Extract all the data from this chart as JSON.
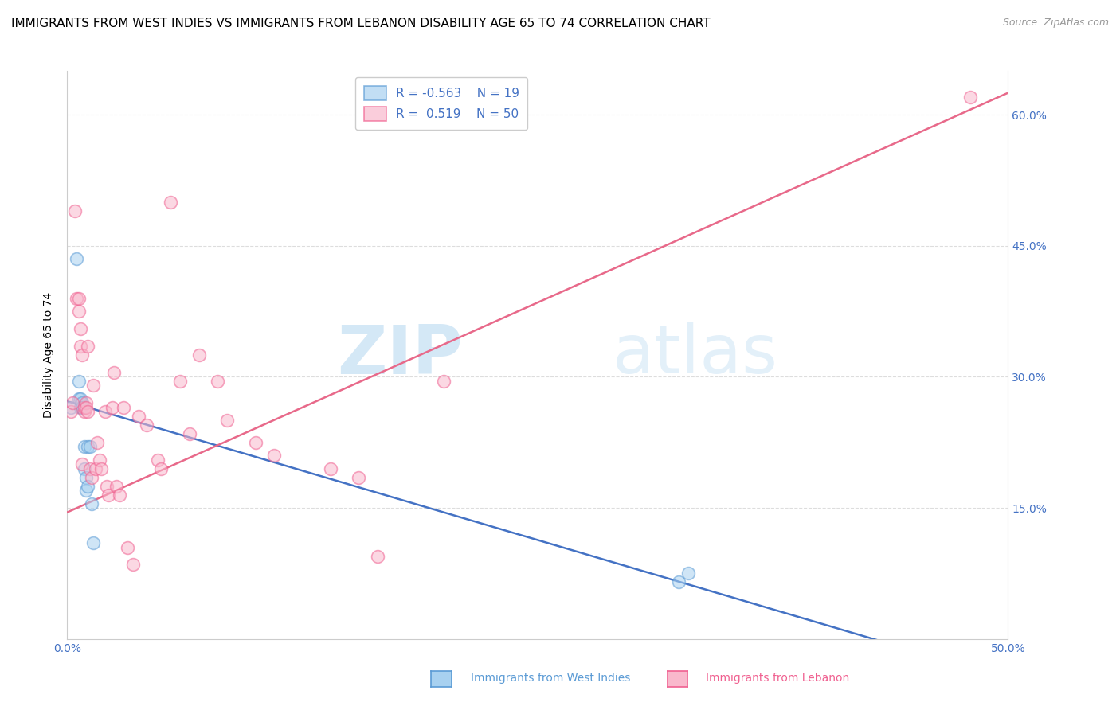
{
  "title": "IMMIGRANTS FROM WEST INDIES VS IMMIGRANTS FROM LEBANON DISABILITY AGE 65 TO 74 CORRELATION CHART",
  "source": "Source: ZipAtlas.com",
  "xlabel_bottom": "Immigrants from West Indies",
  "xlabel_bottom2": "Immigrants from Lebanon",
  "ylabel": "Disability Age 65 to 74",
  "xlim": [
    0.0,
    0.5
  ],
  "ylim": [
    0.0,
    0.65
  ],
  "x_ticks": [
    0.0,
    0.1,
    0.2,
    0.3,
    0.4,
    0.5
  ],
  "x_tick_labels": [
    "0.0%",
    "",
    "",
    "",
    "",
    "50.0%"
  ],
  "y_ticks": [
    0.15,
    0.3,
    0.45,
    0.6
  ],
  "y_tick_labels": [
    "15.0%",
    "30.0%",
    "45.0%",
    "60.0%"
  ],
  "grid_color": "#dddddd",
  "watermark_text": "ZIP",
  "watermark_text2": "atlas",
  "blue_color": "#a8d1f0",
  "pink_color": "#f9b8cc",
  "blue_edge_color": "#5b9bd5",
  "pink_edge_color": "#f06090",
  "blue_line_color": "#4472c4",
  "pink_line_color": "#e8698a",
  "legend_R_blue": "-0.563",
  "legend_N_blue": "19",
  "legend_R_pink": " 0.519",
  "legend_N_pink": "50",
  "blue_scatter_x": [
    0.002,
    0.005,
    0.006,
    0.006,
    0.007,
    0.007,
    0.008,
    0.008,
    0.009,
    0.009,
    0.01,
    0.01,
    0.011,
    0.011,
    0.012,
    0.013,
    0.014,
    0.325,
    0.33
  ],
  "blue_scatter_y": [
    0.265,
    0.435,
    0.295,
    0.275,
    0.275,
    0.265,
    0.27,
    0.265,
    0.22,
    0.195,
    0.185,
    0.17,
    0.22,
    0.175,
    0.22,
    0.155,
    0.11,
    0.065,
    0.075
  ],
  "pink_scatter_x": [
    0.002,
    0.003,
    0.004,
    0.005,
    0.006,
    0.006,
    0.007,
    0.007,
    0.008,
    0.008,
    0.009,
    0.009,
    0.01,
    0.01,
    0.011,
    0.011,
    0.012,
    0.013,
    0.014,
    0.015,
    0.016,
    0.017,
    0.018,
    0.02,
    0.021,
    0.022,
    0.024,
    0.025,
    0.026,
    0.028,
    0.03,
    0.032,
    0.035,
    0.038,
    0.042,
    0.048,
    0.05,
    0.055,
    0.06,
    0.065,
    0.07,
    0.08,
    0.085,
    0.1,
    0.11,
    0.14,
    0.155,
    0.165,
    0.2,
    0.48
  ],
  "pink_scatter_y": [
    0.26,
    0.27,
    0.49,
    0.39,
    0.39,
    0.375,
    0.355,
    0.335,
    0.325,
    0.2,
    0.26,
    0.265,
    0.27,
    0.265,
    0.335,
    0.26,
    0.195,
    0.185,
    0.29,
    0.195,
    0.225,
    0.205,
    0.195,
    0.26,
    0.175,
    0.165,
    0.265,
    0.305,
    0.175,
    0.165,
    0.265,
    0.105,
    0.085,
    0.255,
    0.245,
    0.205,
    0.195,
    0.5,
    0.295,
    0.235,
    0.325,
    0.295,
    0.25,
    0.225,
    0.21,
    0.195,
    0.185,
    0.095,
    0.295,
    0.62
  ],
  "blue_line_x": [
    0.0,
    0.46
  ],
  "blue_line_y": [
    0.272,
    -0.02
  ],
  "pink_line_x": [
    0.0,
    0.5
  ],
  "pink_line_y": [
    0.145,
    0.625
  ],
  "background_color": "#ffffff",
  "title_fontsize": 11,
  "source_fontsize": 9,
  "tick_label_color": "#4472c4",
  "marker_size": 130,
  "marker_alpha": 0.55,
  "marker_linewidth": 1.2
}
